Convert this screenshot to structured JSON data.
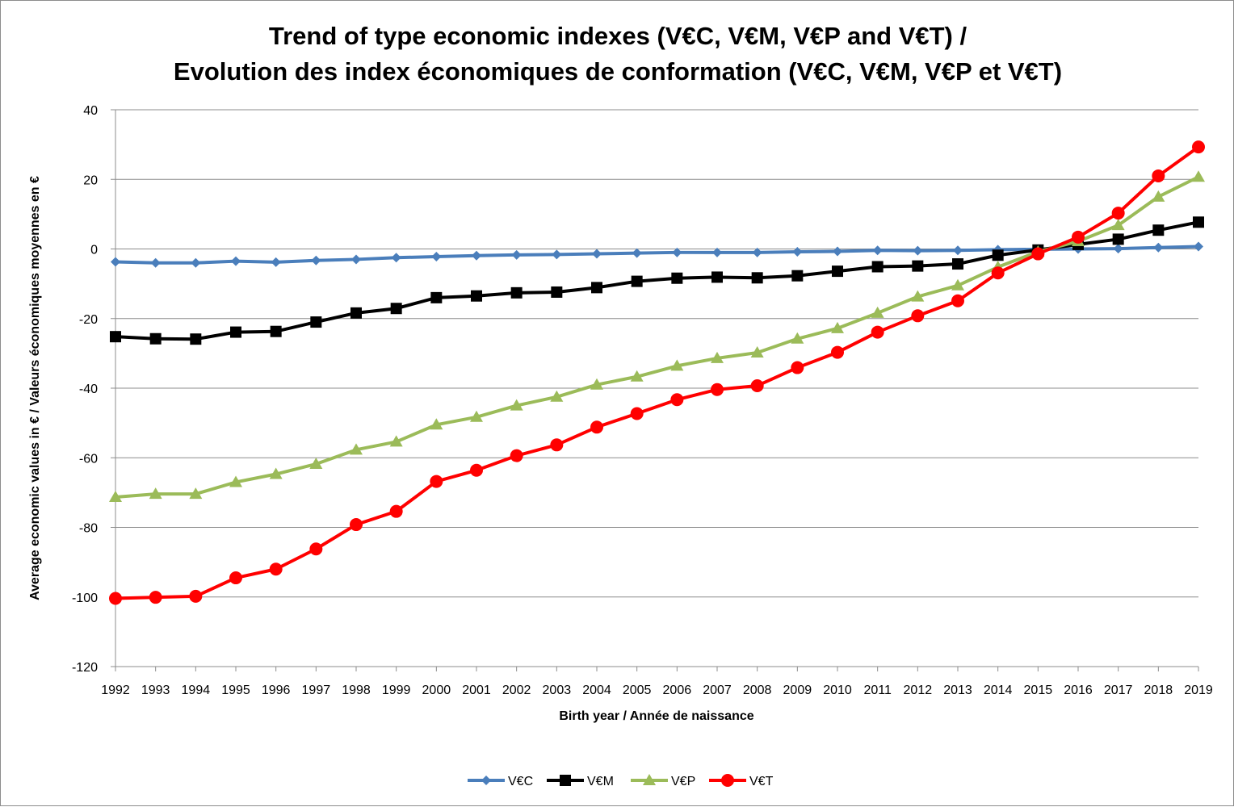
{
  "chart_data": {
    "type": "line",
    "title_lines": [
      "Trend of type economic indexes  (V€C, V€M, V€P and V€T) /",
      "Evolution des index économiques de conformation (V€C, V€M, V€P et V€T)"
    ],
    "xlabel": "Birth year / Année de naissance",
    "ylabel": "Average economic values in € / Valeurs économiques moyennes en €",
    "categories": [
      "1992",
      "1993",
      "1994",
      "1995",
      "1996",
      "1997",
      "1998",
      "1999",
      "2000",
      "2001",
      "2002",
      "2003",
      "2004",
      "2005",
      "2006",
      "2007",
      "2008",
      "2009",
      "2010",
      "2011",
      "2012",
      "2013",
      "2014",
      "2015",
      "2016",
      "2017",
      "2018",
      "2019"
    ],
    "ylim": [
      -120,
      40
    ],
    "yticks": [
      40,
      20,
      0,
      -20,
      -40,
      -60,
      -80,
      -100,
      -120
    ],
    "grid": "horizontal",
    "legend_position": "bottom",
    "series": [
      {
        "name": "V€C",
        "color": "#4a7ebb",
        "marker": "diamond",
        "values": [
          -3.7,
          -4.0,
          -4.0,
          -3.5,
          -3.8,
          -3.3,
          -3.0,
          -2.5,
          -2.2,
          -1.9,
          -1.7,
          -1.6,
          -1.4,
          -1.2,
          -1.0,
          -1.0,
          -1.0,
          -0.8,
          -0.7,
          -0.4,
          -0.5,
          -0.4,
          -0.2,
          -0.1,
          0.0,
          0.1,
          0.4,
          0.7
        ]
      },
      {
        "name": "V€M",
        "color": "#000000",
        "marker": "square",
        "values": [
          -25.2,
          -25.8,
          -25.9,
          -23.9,
          -23.7,
          -21.0,
          -18.4,
          -17.1,
          -14.0,
          -13.5,
          -12.6,
          -12.4,
          -11.1,
          -9.3,
          -8.4,
          -8.1,
          -8.3,
          -7.7,
          -6.4,
          -5.1,
          -4.9,
          -4.3,
          -1.8,
          -0.3,
          1.3,
          2.8,
          5.4,
          7.7
        ]
      },
      {
        "name": "V€P",
        "color": "#9bbb59",
        "marker": "triangle",
        "values": [
          -71.3,
          -70.4,
          -70.4,
          -67.0,
          -64.7,
          -61.8,
          -57.7,
          -55.4,
          -50.5,
          -48.3,
          -45.0,
          -42.5,
          -39.0,
          -36.7,
          -33.6,
          -31.4,
          -29.8,
          -25.8,
          -22.8,
          -18.4,
          -13.7,
          -10.5,
          -5.2,
          -0.8,
          2.2,
          6.8,
          15.0,
          20.7
        ]
      },
      {
        "name": "V€T",
        "color": "#ff0000",
        "marker": "circle",
        "values": [
          -100.4,
          -100.1,
          -99.8,
          -94.5,
          -92.0,
          -86.2,
          -79.2,
          -75.4,
          -66.8,
          -63.6,
          -59.4,
          -56.3,
          -51.2,
          -47.3,
          -43.3,
          -40.4,
          -39.3,
          -34.1,
          -29.7,
          -23.9,
          -19.2,
          -14.9,
          -6.9,
          -1.4,
          3.4,
          10.3,
          21.0,
          29.3
        ]
      }
    ]
  }
}
